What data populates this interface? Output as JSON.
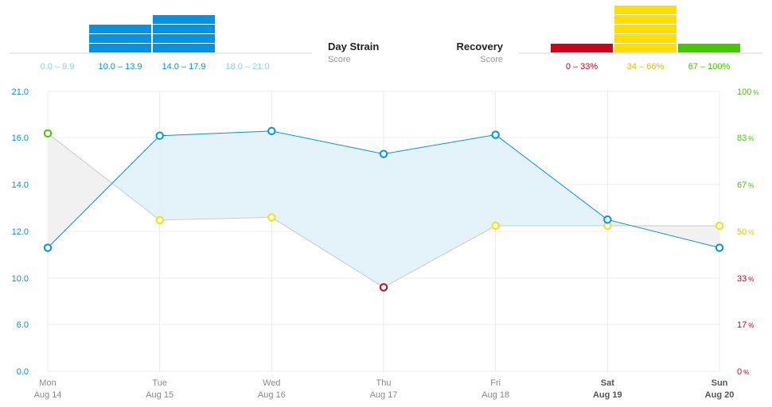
{
  "strain_header": {
    "title": "Day Strain",
    "subtitle": "Score",
    "bins": [
      {
        "label": "0.0 – 9.9",
        "count": 0
      },
      {
        "label": "10.0 – 13.9",
        "count": 3
      },
      {
        "label": "14.0 – 17.9",
        "count": 4
      },
      {
        "label": "18.0 – 21.0",
        "count": 0
      }
    ]
  },
  "recovery_header": {
    "title": "Recovery",
    "subtitle": "Score",
    "bins": [
      {
        "label": "0 – 33%",
        "count": 1,
        "color": "#d0021b"
      },
      {
        "label": "34 – 66%",
        "count": 5,
        "color": "#ffde00"
      },
      {
        "label": "67 – 100%",
        "count": 1,
        "color": "#44c900"
      }
    ]
  },
  "colors": {
    "strain_blue": "#0093e6",
    "strain_blue_light": "#8fd0f5",
    "strain_fill": "#e4f2fa",
    "recovery_fill": "#f1f1f1",
    "recovery_line": "#cccccc",
    "grid": "#ececec",
    "axis_label_gray": "#8a8a8a",
    "red": "#d0021b",
    "yellow": "#ffde00",
    "green": "#44c900"
  },
  "chart_data": {
    "type": "line",
    "title": "",
    "days": [
      "Mon",
      "Tue",
      "Wed",
      "Thu",
      "Fri",
      "Sat",
      "Sun"
    ],
    "dates": [
      "Aug 14",
      "Aug 15",
      "Aug 16",
      "Aug 17",
      "Aug 18",
      "Aug 19",
      "Aug 20"
    ],
    "bold_days": [
      false,
      false,
      false,
      false,
      false,
      true,
      true
    ],
    "left_axis": {
      "label": "Day Strain",
      "ticks": [
        "0.0",
        "6.0",
        "10.0",
        "12.0",
        "14.0",
        "16.0",
        "21.0"
      ]
    },
    "right_axis": {
      "label": "Recovery",
      "ticks": [
        {
          "value": "0",
          "unit": "%",
          "color": "#d0021b"
        },
        {
          "value": "17",
          "unit": "%",
          "color": "#d0021b"
        },
        {
          "value": "33",
          "unit": "%",
          "color": "#d0021b"
        },
        {
          "value": "50",
          "unit": "%",
          "color": "#e8c800"
        },
        {
          "value": "67",
          "unit": "%",
          "color": "#44c900"
        },
        {
          "value": "83",
          "unit": "%",
          "color": "#44c900"
        },
        {
          "value": "100",
          "unit": "%",
          "color": "#44c900"
        }
      ]
    },
    "series": [
      {
        "name": "Day Strain",
        "unit": "score",
        "scale": "piecewise on left-axis ticks",
        "values": [
          11.3,
          16.2,
          16.7,
          15.3,
          16.3,
          12.5,
          11.3
        ]
      },
      {
        "name": "Recovery",
        "unit": "%",
        "values": [
          85,
          54,
          55,
          30,
          52,
          52,
          52
        ],
        "point_colors": [
          "#44c900",
          "#ffde00",
          "#ffde00",
          "#d0021b",
          "#ffde00",
          "#ffde00",
          "#ffde00"
        ]
      }
    ]
  }
}
